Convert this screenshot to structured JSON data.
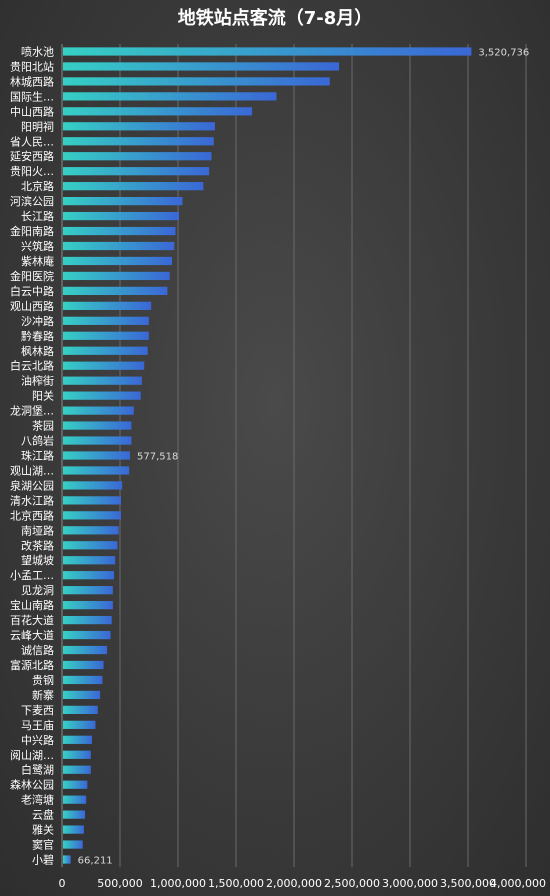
{
  "chart_data": {
    "type": "bar",
    "orientation": "horizontal",
    "title": "地铁站点客流（7-8月）",
    "xlabel": "",
    "ylabel": "",
    "xlim": [
      0,
      4000000
    ],
    "x_ticks": [
      "0",
      "500,000",
      "1,000,000",
      "1,500,000",
      "2,000,000",
      "2,500,000",
      "3,000,000",
      "3,500,000",
      "4,000,000"
    ],
    "x_tick_values": [
      0,
      500000,
      1000000,
      1500000,
      2000000,
      2500000,
      3000000,
      3500000,
      4000000
    ],
    "grid": "vertical",
    "categories": [
      "喷水池",
      "贵阳北站",
      "林城西路",
      "国际生…",
      "中山西路",
      "阳明祠",
      "省人民…",
      "延安西路",
      "贵阳火…",
      "北京路",
      "河滨公园",
      "长江路",
      "金阳南路",
      "兴筑路",
      "紫林庵",
      "金阳医院",
      "白云中路",
      "观山西路",
      "沙冲路",
      "黔春路",
      "枫林路",
      "白云北路",
      "油榨街",
      "阳关",
      "龙洞堡…",
      "茶园",
      "八鸽岩",
      "珠江路",
      "观山湖…",
      "泉湖公园",
      "清水江路",
      "北京西路",
      "南垭路",
      "改茶路",
      "望城坡",
      "小孟工…",
      "见龙洞",
      "宝山南路",
      "百花大道",
      "云峰大道",
      "诚信路",
      "富源北路",
      "贵钢",
      "新寨",
      "下麦西",
      "马王庙",
      "中兴路",
      "阅山湖…",
      "白鹭湖",
      "森林公园",
      "老湾塘",
      "云盘",
      "雅关",
      "窦官",
      "小碧"
    ],
    "values": [
      3520736,
      2380000,
      2300000,
      1840000,
      1630000,
      1310000,
      1300000,
      1280000,
      1260000,
      1210000,
      1030000,
      1000000,
      970000,
      960000,
      940000,
      920000,
      900000,
      760000,
      740000,
      740000,
      730000,
      700000,
      680000,
      670000,
      610000,
      590000,
      590000,
      577518,
      570000,
      510000,
      500000,
      500000,
      480000,
      470000,
      450000,
      440000,
      430000,
      430000,
      420000,
      410000,
      380000,
      350000,
      340000,
      320000,
      300000,
      280000,
      250000,
      240000,
      240000,
      210000,
      200000,
      190000,
      180000,
      170000,
      66211
    ],
    "data_labels": [
      {
        "index": 0,
        "text": "3,520,736"
      },
      {
        "index": 27,
        "text": "577,518"
      },
      {
        "index": 54,
        "text": "66,211"
      }
    ],
    "colors": {
      "bar_start": "#36d0c4",
      "bar_end": "#3a67d6",
      "grid": "#6a6a6a",
      "text": "#ffffff"
    }
  }
}
